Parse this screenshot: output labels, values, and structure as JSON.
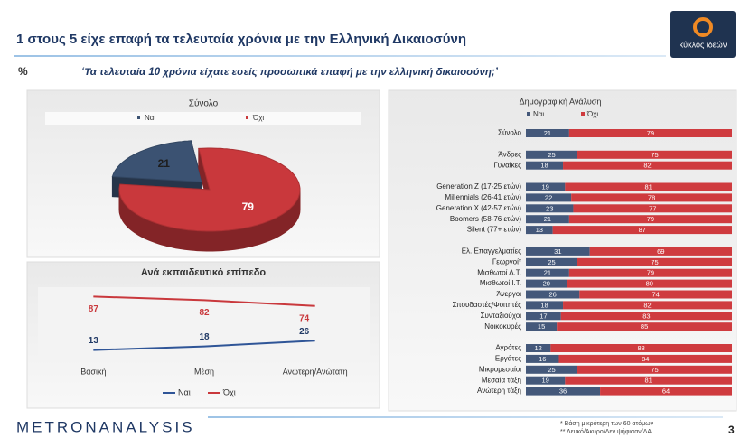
{
  "header": {
    "title": "1 στους 5 είχε επαφή τα τελευταία χρόνια με την Ελληνική Δικαιοσύνη",
    "unit": "%",
    "question": "‘Τα τελευταία 10 χρόνια είχατε εσείς προσωπικά επαφή με την ελληνική δικαιοσύνη;’",
    "logo": "κύκλος ιδεών"
  },
  "footer": {
    "brand": "METRONANALYSIS",
    "notes": [
      "* Βάση μικρότερη των 60 ατόμων",
      "** Λευκό/Άκυρο/Δεν ψήφισαν/ΔΑ"
    ],
    "page": "3"
  },
  "chart_data": [
    {
      "type": "pie",
      "title": "Σύνολο",
      "categories": [
        "Ναι",
        "Όχι"
      ],
      "values": [
        21,
        79
      ],
      "colors": [
        "#3b5272",
        "#c9383c"
      ]
    },
    {
      "type": "line",
      "title": "Ανά εκπαιδευτικό επίπεδο",
      "categories": [
        "Βασική",
        "Μέση",
        "Ανώτερη/Ανώτατη"
      ],
      "series": [
        {
          "name": "Ναι",
          "color": "#2f5597",
          "values": [
            13,
            18,
            26
          ]
        },
        {
          "name": "Όχι",
          "color": "#c9383c",
          "values": [
            87,
            82,
            74
          ]
        }
      ],
      "ylim": [
        0,
        100
      ]
    },
    {
      "type": "bar",
      "orientation": "horizontal",
      "stacked": true,
      "title": "Δημογραφική Ανάλυση",
      "categories": [
        "Σύνολο",
        "Άνδρες",
        "Γυναίκες",
        "Generation Z (17-25 ετών)",
        "Millennials (26-41 ετών)",
        "Generation X (42-57 ετών)",
        "Boomers (58-76 ετών)",
        "Silent (77+ ετών)",
        "Ελ. Επαγγελματίες",
        "Γεωργοί*",
        "Μισθωτοί Δ.Τ.",
        "Μισθωτοί Ι.Τ.",
        "Άνεργοι",
        "Σπουδαστές/Φοιτητές",
        "Συνταξιούχοι",
        "Νοικοκυρές",
        "Αγρότες",
        "Εργάτες",
        "Μικρομεσαίοι",
        "Μεσαία τάξη",
        "Ανώτερη τάξη"
      ],
      "series": [
        {
          "name": "Ναι",
          "color": "#44587a",
          "values": [
            21,
            25,
            18,
            19,
            22,
            23,
            21,
            13,
            31,
            25,
            21,
            20,
            26,
            18,
            17,
            15,
            12,
            16,
            25,
            19,
            36
          ]
        },
        {
          "name": "Όχι",
          "color": "#cf3b3f",
          "values": [
            79,
            75,
            82,
            81,
            78,
            77,
            79,
            87,
            69,
            75,
            79,
            80,
            74,
            82,
            83,
            85,
            88,
            84,
            75,
            81,
            64
          ]
        }
      ],
      "xlim": [
        0,
        100
      ]
    }
  ]
}
